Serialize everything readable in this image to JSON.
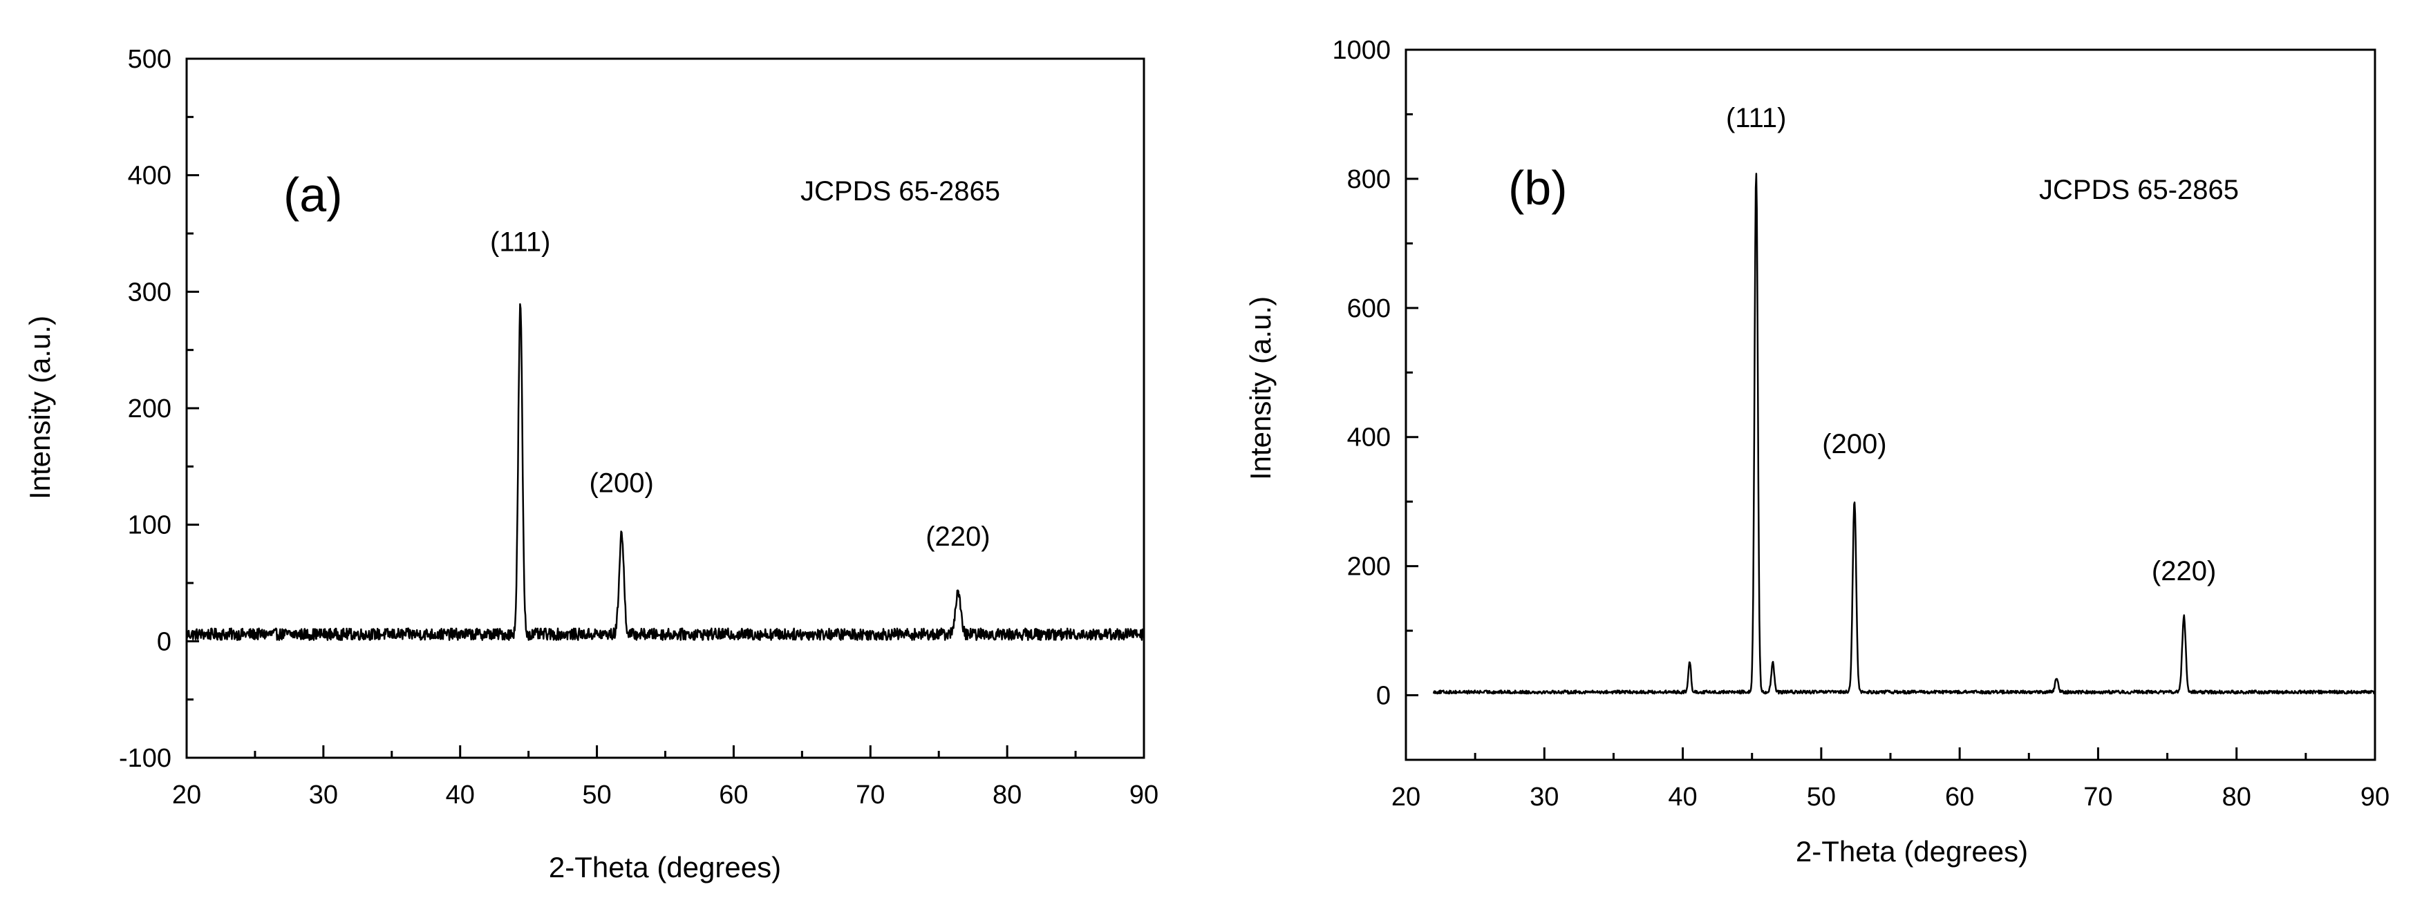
{
  "chart_data": [
    {
      "type": "line",
      "panel_label": "(a)",
      "xlabel": "2-Theta (degrees)",
      "ylabel": "Intensity (a.u.)",
      "reference": "JCPDS 65-2865",
      "xlim": [
        20,
        90
      ],
      "ylim": [
        -100,
        500
      ],
      "xticks": [
        20,
        30,
        40,
        50,
        60,
        70,
        80,
        90
      ],
      "yticks": [
        -100,
        0,
        100,
        200,
        300,
        400,
        500
      ],
      "tick_labels_x": [
        "20",
        "30",
        "40",
        "50",
        "60",
        "70",
        "80",
        "90"
      ],
      "tick_labels_y": [
        "-100",
        "0",
        "100",
        "200",
        "300",
        "400",
        "500"
      ],
      "grid": false,
      "baseline": 6,
      "noise": 5,
      "peaks": [
        {
          "x": 44.4,
          "y": 288,
          "width": 0.35
        },
        {
          "x": 51.8,
          "y": 93,
          "width": 0.4
        },
        {
          "x": 76.4,
          "y": 42,
          "width": 0.45
        }
      ],
      "annotations": [
        {
          "text": "(111)",
          "x": 44.4,
          "y": 335
        },
        {
          "text": "(200)",
          "x": 51.8,
          "y": 128
        },
        {
          "text": "(220)",
          "x": 76.4,
          "y": 82
        }
      ]
    },
    {
      "type": "line",
      "panel_label": "(b)",
      "xlabel": "2-Theta (degrees)",
      "ylabel": "Intensity (a.u.)",
      "reference": "JCPDS 65-2865",
      "xlim": [
        20,
        90
      ],
      "ylim": [
        -100,
        1000
      ],
      "xticks": [
        20,
        30,
        40,
        50,
        60,
        70,
        80,
        90
      ],
      "yticks": [
        0,
        200,
        400,
        600,
        800,
        1000
      ],
      "tick_labels_x": [
        "20",
        "30",
        "40",
        "50",
        "60",
        "70",
        "80",
        "90"
      ],
      "tick_labels_y": [
        "0",
        "200",
        "400",
        "600",
        "800",
        "1000"
      ],
      "grid": false,
      "x_start": 22,
      "baseline": 5,
      "noise": 2.5,
      "peaks": [
        {
          "x": 40.5,
          "y": 53,
          "width": 0.22
        },
        {
          "x": 45.3,
          "y": 812,
          "width": 0.28
        },
        {
          "x": 46.5,
          "y": 50,
          "width": 0.25
        },
        {
          "x": 52.4,
          "y": 300,
          "width": 0.3
        },
        {
          "x": 67.0,
          "y": 27,
          "width": 0.25
        },
        {
          "x": 76.2,
          "y": 122,
          "width": 0.3
        }
      ],
      "annotations": [
        {
          "text": "(111)",
          "x": 45.3,
          "y": 880
        },
        {
          "text": "(200)",
          "x": 52.4,
          "y": 375
        },
        {
          "text": "(220)",
          "x": 76.2,
          "y": 178
        }
      ]
    }
  ]
}
